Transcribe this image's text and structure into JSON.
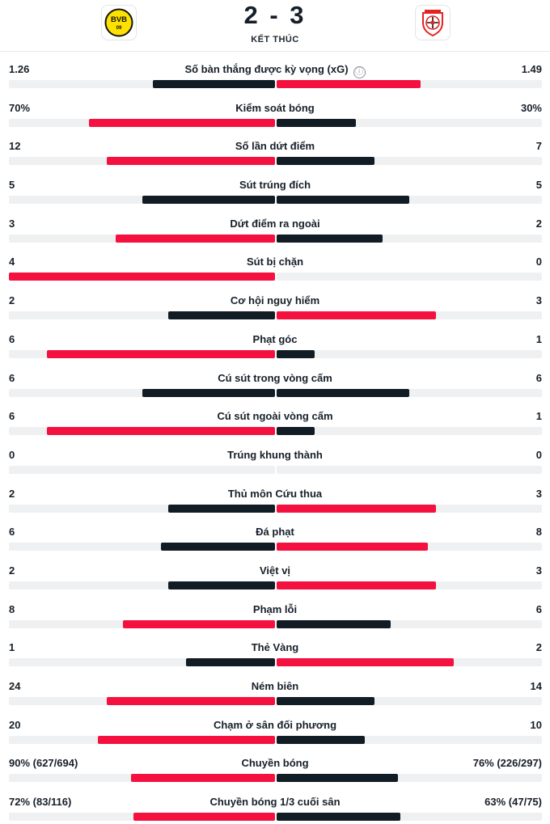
{
  "match": {
    "score": "2 - 3",
    "status": "KẾT THÚC",
    "home_logo_text": "BVB 09",
    "away_logo_text": "Bayer 04 Leverkusen"
  },
  "colors": {
    "leader": "#f5113f",
    "trailer": "#121c25",
    "track": "#eef0f1"
  },
  "stats": [
    {
      "label": "Số bàn thắng được kỳ vọng (xG)",
      "home": "1.26",
      "away": "1.49",
      "home_share": 0.458,
      "away_share": 0.542,
      "leader": "away",
      "info_icon": "ⓘ"
    },
    {
      "label": "Kiểm soát bóng",
      "home": "70%",
      "away": "30%",
      "home_share": 0.7,
      "away_share": 0.3,
      "leader": "home"
    },
    {
      "label": "Số lần dứt điểm",
      "home": "12",
      "away": "7",
      "home_share": 0.632,
      "away_share": 0.368,
      "leader": "home"
    },
    {
      "label": "Sút trúng đích",
      "home": "5",
      "away": "5",
      "home_share": 0.5,
      "away_share": 0.5,
      "leader": "none"
    },
    {
      "label": "Dứt điểm ra ngoài",
      "home": "3",
      "away": "2",
      "home_share": 0.6,
      "away_share": 0.4,
      "leader": "home"
    },
    {
      "label": "Sút bị chặn",
      "home": "4",
      "away": "0",
      "home_share": 1.0,
      "away_share": 0.0,
      "leader": "home"
    },
    {
      "label": "Cơ hội nguy hiểm",
      "home": "2",
      "away": "3",
      "home_share": 0.4,
      "away_share": 0.6,
      "leader": "away"
    },
    {
      "label": "Phạt góc",
      "home": "6",
      "away": "1",
      "home_share": 0.857,
      "away_share": 0.143,
      "leader": "home"
    },
    {
      "label": "Cú sút trong vòng cấm",
      "home": "6",
      "away": "6",
      "home_share": 0.5,
      "away_share": 0.5,
      "leader": "none"
    },
    {
      "label": "Cú sút ngoài vòng cấm",
      "home": "6",
      "away": "1",
      "home_share": 0.857,
      "away_share": 0.143,
      "leader": "home"
    },
    {
      "label": "Trúng khung thành",
      "home": "0",
      "away": "0",
      "home_share": 0.0,
      "away_share": 0.0,
      "leader": "none"
    },
    {
      "label": "Thủ môn Cứu thua",
      "home": "2",
      "away": "3",
      "home_share": 0.4,
      "away_share": 0.6,
      "leader": "away"
    },
    {
      "label": "Đá phạt",
      "home": "6",
      "away": "8",
      "home_share": 0.429,
      "away_share": 0.571,
      "leader": "away"
    },
    {
      "label": "Việt vị",
      "home": "2",
      "away": "3",
      "home_share": 0.4,
      "away_share": 0.6,
      "leader": "away"
    },
    {
      "label": "Phạm lỗi",
      "home": "8",
      "away": "6",
      "home_share": 0.571,
      "away_share": 0.429,
      "leader": "home"
    },
    {
      "label": "Thẻ Vàng",
      "home": "1",
      "away": "2",
      "home_share": 0.333,
      "away_share": 0.667,
      "leader": "away"
    },
    {
      "label": "Ném biên",
      "home": "24",
      "away": "14",
      "home_share": 0.632,
      "away_share": 0.368,
      "leader": "home"
    },
    {
      "label": "Chạm ở sân đối phương",
      "home": "20",
      "away": "10",
      "home_share": 0.667,
      "away_share": 0.333,
      "leader": "home"
    },
    {
      "label": "Chuyền bóng",
      "home": "90% (627/694)",
      "away": "76% (226/297)",
      "home_share": 0.542,
      "away_share": 0.458,
      "leader": "home"
    },
    {
      "label": "Chuyền bóng 1/3 cuối sân",
      "home": "72% (83/116)",
      "away": "63% (47/75)",
      "home_share": 0.533,
      "away_share": 0.467,
      "leader": "home"
    }
  ]
}
